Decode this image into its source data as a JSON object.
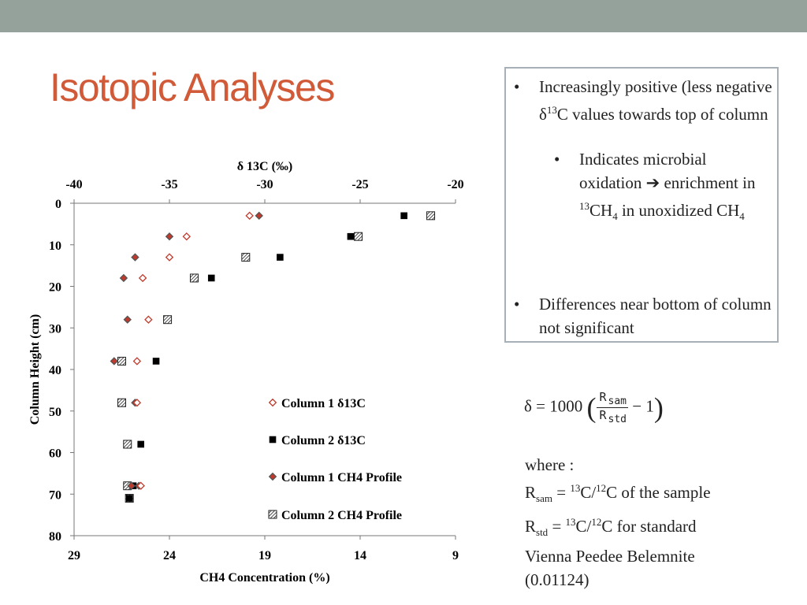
{
  "slide": {
    "title": "Isotopic Analyses",
    "colors": {
      "topbar": "#95a29c",
      "title": "#d15a38",
      "box_border": "#a6b0b6",
      "red": "#c0392b"
    }
  },
  "bullets": {
    "b1_text": "Increasingly positive (less negative δ",
    "b1_sup": "13",
    "b1_tail": "C values towards top of column",
    "b2_text1": "Indicates microbial oxidation ",
    "b2_arrow": "➔",
    "b2_text2": " enrichment in ",
    "b2_sup": "13",
    "b2_ch": "CH",
    "b2_sub": "4",
    "b2_text3": " in unoxidized CH",
    "b2_sub2": "4",
    "b3_text": "Differences near bottom of column not significant",
    "dot": "•"
  },
  "formula": {
    "lhs": "δ = 1000",
    "num": "R",
    "num_sub": "sam",
    "den": "R",
    "den_sub": "std",
    "tail": "− 1"
  },
  "notes": {
    "where": "where :",
    "l1_r": "R",
    "l1_sub": "sam",
    "l1_eq": " = ",
    "l1_sup1": "13",
    "l1_c1": "C/",
    "l1_sup2": "12",
    "l1_tail": "C of the sample",
    "l2_r": " R",
    "l2_sub": "std",
    "l2_eq": " = ",
    "l2_sup1": "13",
    "l2_c1": "C/",
    "l2_sup2": "12",
    "l2_tail": "C for standard",
    "l3": "Vienna Peedee Belemnite",
    "l4": "(0.01124)"
  },
  "chart_data": {
    "type": "scatter",
    "top_axis": {
      "label": "δ 13C (‰)",
      "ticks": [
        "-40",
        "-35",
        "-30",
        "-25",
        "-20"
      ],
      "range": [
        -40,
        -20
      ]
    },
    "bottom_axis": {
      "label": "CH4 Concentration (%)",
      "ticks": [
        "29",
        "24",
        "19",
        "14",
        "9"
      ],
      "range": [
        29,
        9
      ]
    },
    "y_axis": {
      "label": "Column Height (cm)",
      "ticks": [
        "0",
        "10",
        "20",
        "30",
        "40",
        "50",
        "60",
        "70",
        "80"
      ],
      "range": [
        0,
        80
      ]
    },
    "legend": "inside-bottom-right",
    "grid": false,
    "series": [
      {
        "name": "Column 1 δ13C",
        "marker": "diamond-open",
        "axis": "top",
        "points": [
          [
            -30.8,
            3
          ],
          [
            -34.1,
            8
          ],
          [
            -35.0,
            13
          ],
          [
            -36.4,
            18
          ],
          [
            -36.1,
            28
          ],
          [
            -36.7,
            38
          ],
          [
            -36.7,
            48
          ],
          [
            -36.5,
            68
          ]
        ]
      },
      {
        "name": "Column 2 δ13C",
        "marker": "square-solid",
        "axis": "top",
        "points": [
          [
            -22.7,
            3
          ],
          [
            -25.5,
            8
          ],
          [
            -29.2,
            13
          ],
          [
            -32.8,
            18
          ],
          [
            -35.7,
            38
          ],
          [
            -36.5,
            58
          ],
          [
            -36.9,
            68
          ],
          [
            -37.1,
            71
          ]
        ]
      },
      {
        "name": "Column 1 CH4 Profile",
        "marker": "diamond-solid",
        "axis": "bottom",
        "points": [
          [
            19.3,
            3
          ],
          [
            24.0,
            8
          ],
          [
            25.8,
            13
          ],
          [
            26.4,
            18
          ],
          [
            26.2,
            28
          ],
          [
            26.9,
            38
          ],
          [
            25.8,
            48
          ],
          [
            25.6,
            68
          ],
          [
            26.0,
            68
          ]
        ]
      },
      {
        "name": "Column 2 CH4 Profile",
        "marker": "square-hatched",
        "axis": "bottom",
        "points": [
          [
            10.3,
            3
          ],
          [
            14.1,
            8
          ],
          [
            20.0,
            13
          ],
          [
            22.7,
            18
          ],
          [
            24.1,
            28
          ],
          [
            26.5,
            38
          ],
          [
            26.5,
            48
          ],
          [
            26.2,
            58
          ],
          [
            26.2,
            68
          ],
          [
            26.1,
            71
          ]
        ]
      }
    ]
  }
}
